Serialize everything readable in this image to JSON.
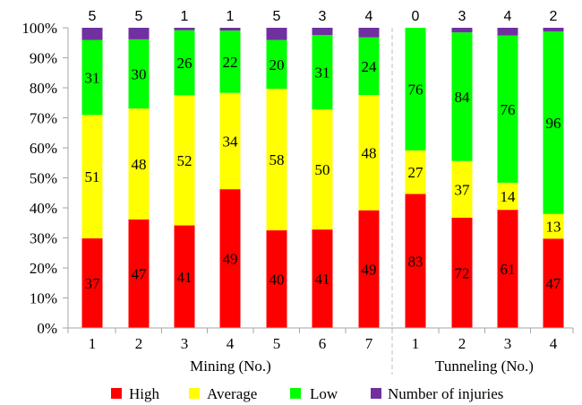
{
  "chart_data": {
    "type": "bar",
    "stacked": true,
    "normalized": true,
    "categories": [
      "1",
      "2",
      "3",
      "4",
      "5",
      "6",
      "7",
      "1",
      "2",
      "3",
      "4"
    ],
    "groups": [
      {
        "label": "Mining (No.)",
        "count": 7
      },
      {
        "label": "Tunneling (No.)",
        "count": 4
      }
    ],
    "series": [
      {
        "name": "High",
        "color": "#ff0000",
        "values": [
          37,
          47,
          41,
          49,
          40,
          41,
          49,
          83,
          72,
          61,
          47
        ]
      },
      {
        "name": "Average",
        "color": "#ffff00",
        "values": [
          51,
          48,
          52,
          34,
          58,
          50,
          48,
          27,
          37,
          14,
          13
        ]
      },
      {
        "name": "Low",
        "color": "#00ff00",
        "values": [
          31,
          30,
          26,
          22,
          20,
          31,
          24,
          76,
          84,
          76,
          96
        ]
      },
      {
        "name": "Number of injuries",
        "color": "#7030a0",
        "values": [
          5,
          5,
          1,
          1,
          5,
          3,
          4,
          0,
          3,
          4,
          2
        ]
      }
    ],
    "yticks": [
      "0%",
      "10%",
      "20%",
      "30%",
      "40%",
      "50%",
      "60%",
      "70%",
      "80%",
      "90%",
      "100%"
    ],
    "ylim": [
      0,
      100
    ],
    "legend_position": "bottom",
    "group_divider": "dashed",
    "grid": false
  }
}
